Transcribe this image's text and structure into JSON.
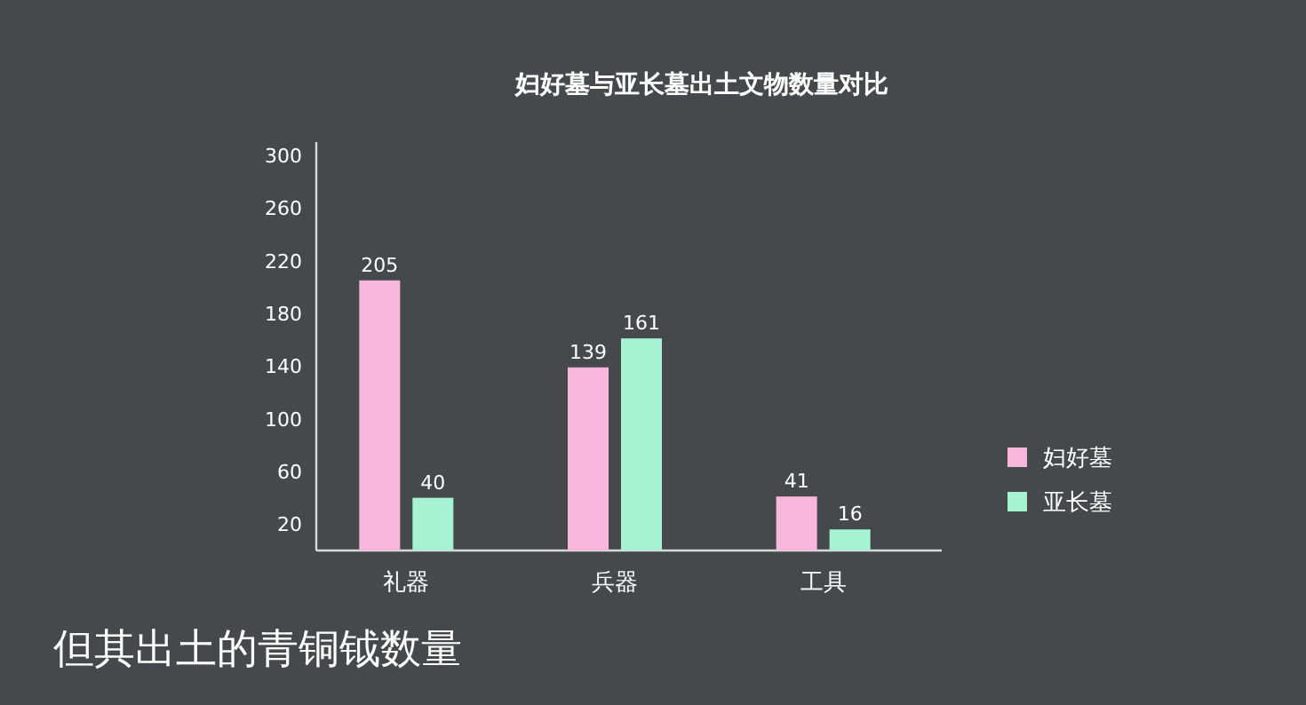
{
  "chart_data": {
    "type": "bar",
    "title": "妇好墓与亚长墓出土文物数量对比",
    "categories": [
      "礼器",
      "兵器",
      "工具"
    ],
    "series": [
      {
        "name": "妇好墓",
        "color": "#f7b6dc",
        "values": [
          205,
          139,
          41
        ]
      },
      {
        "name": "亚长墓",
        "color": "#a6f2d2",
        "values": [
          40,
          161,
          16
        ]
      }
    ],
    "ylim": [
      0,
      310
    ],
    "yticks": [
      20,
      60,
      100,
      140,
      180,
      220,
      260,
      300
    ],
    "data_labels": true,
    "legend": "right",
    "annotations": [
      "但其出土的青铜钺数量"
    ]
  }
}
